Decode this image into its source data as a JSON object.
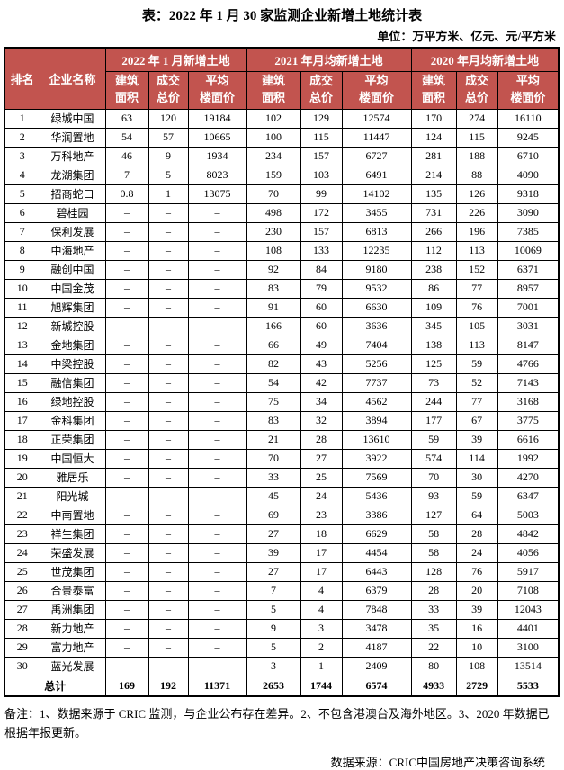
{
  "title": "表：2022 年 1 月 30 家监测企业新增土地统计表",
  "unit_note": "单位：万平方米、亿元、元/平方米",
  "colors": {
    "header_bg": "#c2544f",
    "header_text": "#ffffff",
    "border": "#000000",
    "page_bg": "#ffffff"
  },
  "table": {
    "rank_header": "排名",
    "company_header": "企业名称",
    "groups": [
      {
        "label": "2022 年 1 月新增土地",
        "columns": [
          "建筑\n面积",
          "成交\n总价",
          "平均\n楼面价"
        ]
      },
      {
        "label": "2021 年月均新增土地",
        "columns": [
          "建筑\n面积",
          "成交\n总价",
          "平均\n楼面价"
        ]
      },
      {
        "label": "2020 年月均新增土地",
        "columns": [
          "建筑\n面积",
          "成交\n总价",
          "平均\n楼面价"
        ]
      }
    ],
    "rows": [
      {
        "rank": "1",
        "name": "绿城中国",
        "values": [
          "63",
          "120",
          "19184",
          "102",
          "129",
          "12574",
          "170",
          "274",
          "16110"
        ]
      },
      {
        "rank": "2",
        "name": "华润置地",
        "values": [
          "54",
          "57",
          "10665",
          "100",
          "115",
          "11447",
          "124",
          "115",
          "9245"
        ]
      },
      {
        "rank": "3",
        "name": "万科地产",
        "values": [
          "46",
          "9",
          "1934",
          "234",
          "157",
          "6727",
          "281",
          "188",
          "6710"
        ]
      },
      {
        "rank": "4",
        "name": "龙湖集团",
        "values": [
          "7",
          "5",
          "8023",
          "159",
          "103",
          "6491",
          "214",
          "88",
          "4090"
        ]
      },
      {
        "rank": "5",
        "name": "招商蛇口",
        "values": [
          "0.8",
          "1",
          "13075",
          "70",
          "99",
          "14102",
          "135",
          "126",
          "9318"
        ]
      },
      {
        "rank": "6",
        "name": "碧桂园",
        "values": [
          "–",
          "–",
          "–",
          "498",
          "172",
          "3455",
          "731",
          "226",
          "3090"
        ]
      },
      {
        "rank": "7",
        "name": "保利发展",
        "values": [
          "–",
          "–",
          "–",
          "230",
          "157",
          "6813",
          "266",
          "196",
          "7385"
        ]
      },
      {
        "rank": "8",
        "name": "中海地产",
        "values": [
          "–",
          "–",
          "–",
          "108",
          "133",
          "12235",
          "112",
          "113",
          "10069"
        ]
      },
      {
        "rank": "9",
        "name": "融创中国",
        "values": [
          "–",
          "–",
          "–",
          "92",
          "84",
          "9180",
          "238",
          "152",
          "6371"
        ]
      },
      {
        "rank": "10",
        "name": "中国金茂",
        "values": [
          "–",
          "–",
          "–",
          "83",
          "79",
          "9532",
          "86",
          "77",
          "8957"
        ]
      },
      {
        "rank": "11",
        "name": "旭辉集团",
        "values": [
          "–",
          "–",
          "–",
          "91",
          "60",
          "6630",
          "109",
          "76",
          "7001"
        ]
      },
      {
        "rank": "12",
        "name": "新城控股",
        "values": [
          "–",
          "–",
          "–",
          "166",
          "60",
          "3636",
          "345",
          "105",
          "3031"
        ]
      },
      {
        "rank": "13",
        "name": "金地集团",
        "values": [
          "–",
          "–",
          "–",
          "66",
          "49",
          "7404",
          "138",
          "113",
          "8147"
        ]
      },
      {
        "rank": "14",
        "name": "中梁控股",
        "values": [
          "–",
          "–",
          "–",
          "82",
          "43",
          "5256",
          "125",
          "59",
          "4766"
        ]
      },
      {
        "rank": "15",
        "name": "融信集团",
        "values": [
          "–",
          "–",
          "–",
          "54",
          "42",
          "7737",
          "73",
          "52",
          "7143"
        ]
      },
      {
        "rank": "16",
        "name": "绿地控股",
        "values": [
          "–",
          "–",
          "–",
          "75",
          "34",
          "4562",
          "244",
          "77",
          "3168"
        ]
      },
      {
        "rank": "17",
        "name": "金科集团",
        "values": [
          "–",
          "–",
          "–",
          "83",
          "32",
          "3894",
          "177",
          "67",
          "3775"
        ]
      },
      {
        "rank": "18",
        "name": "正荣集团",
        "values": [
          "–",
          "–",
          "–",
          "21",
          "28",
          "13610",
          "59",
          "39",
          "6616"
        ]
      },
      {
        "rank": "19",
        "name": "中国恒大",
        "values": [
          "–",
          "–",
          "–",
          "70",
          "27",
          "3922",
          "574",
          "114",
          "1992"
        ]
      },
      {
        "rank": "20",
        "name": "雅居乐",
        "values": [
          "–",
          "–",
          "–",
          "33",
          "25",
          "7569",
          "70",
          "30",
          "4270"
        ]
      },
      {
        "rank": "21",
        "name": "阳光城",
        "values": [
          "–",
          "–",
          "–",
          "45",
          "24",
          "5436",
          "93",
          "59",
          "6347"
        ]
      },
      {
        "rank": "22",
        "name": "中南置地",
        "values": [
          "–",
          "–",
          "–",
          "69",
          "23",
          "3386",
          "127",
          "64",
          "5003"
        ]
      },
      {
        "rank": "23",
        "name": "祥生集团",
        "values": [
          "–",
          "–",
          "–",
          "27",
          "18",
          "6629",
          "58",
          "28",
          "4842"
        ]
      },
      {
        "rank": "24",
        "name": "荣盛发展",
        "values": [
          "–",
          "–",
          "–",
          "39",
          "17",
          "4454",
          "58",
          "24",
          "4056"
        ]
      },
      {
        "rank": "25",
        "name": "世茂集团",
        "values": [
          "–",
          "–",
          "–",
          "27",
          "17",
          "6443",
          "128",
          "76",
          "5917"
        ]
      },
      {
        "rank": "26",
        "name": "合景泰富",
        "values": [
          "–",
          "–",
          "–",
          "7",
          "4",
          "6379",
          "28",
          "20",
          "7108"
        ]
      },
      {
        "rank": "27",
        "name": "禹洲集团",
        "values": [
          "–",
          "–",
          "–",
          "5",
          "4",
          "7848",
          "33",
          "39",
          "12043"
        ]
      },
      {
        "rank": "28",
        "name": "新力地产",
        "values": [
          "–",
          "–",
          "–",
          "9",
          "3",
          "3478",
          "35",
          "16",
          "4401"
        ]
      },
      {
        "rank": "29",
        "name": "富力地产",
        "values": [
          "–",
          "–",
          "–",
          "5",
          "2",
          "4187",
          "22",
          "10",
          "3100"
        ]
      },
      {
        "rank": "30",
        "name": "蓝光发展",
        "values": [
          "–",
          "–",
          "–",
          "3",
          "1",
          "2409",
          "80",
          "108",
          "13514"
        ]
      }
    ],
    "total": {
      "label": "总计",
      "values": [
        "169",
        "192",
        "11371",
        "2653",
        "1744",
        "6574",
        "4933",
        "2729",
        "5533"
      ]
    }
  },
  "notes": "备注：1、数据来源于 CRIC 监测，与企业公布存在差异。2、不包含港澳台及海外地区。3、2020 年数据已根据年报更新。",
  "source": "数据来源：CRIC中国房地产决策咨询系统"
}
